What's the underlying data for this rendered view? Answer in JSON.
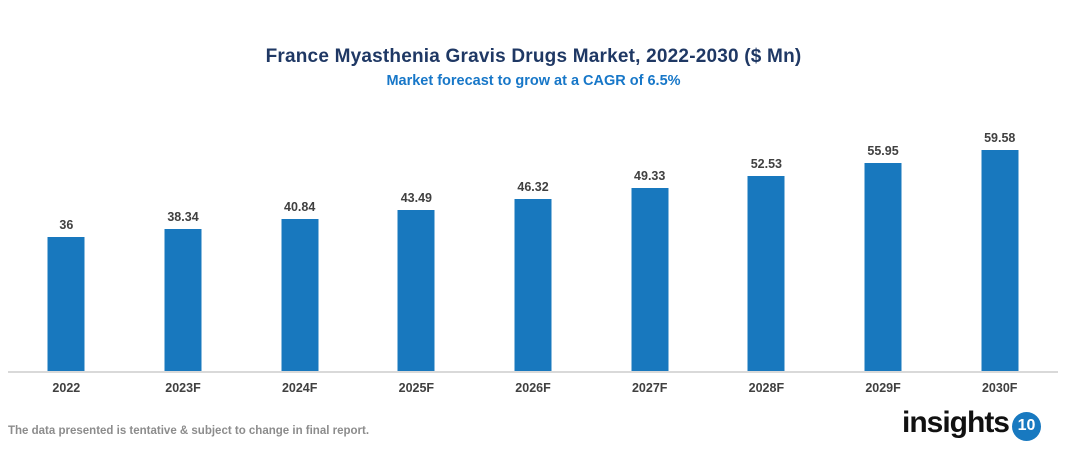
{
  "chart_data": {
    "type": "bar",
    "title": "France Myasthenia Gravis Drugs Market, 2022-2030 ($ Mn)",
    "subtitle": "Market forecast to grow at a CAGR of 6.5%",
    "categories": [
      "2022",
      "2023F",
      "2024F",
      "2025F",
      "2026F",
      "2027F",
      "2028F",
      "2029F",
      "2030F"
    ],
    "values": [
      36,
      38.34,
      40.84,
      43.49,
      46.32,
      49.33,
      52.53,
      55.95,
      59.58
    ],
    "value_labels": [
      "36",
      "38.34",
      "40.84",
      "43.49",
      "46.32",
      "49.33",
      "52.53",
      "55.95",
      "59.58"
    ],
    "xlabel": "",
    "ylabel": "",
    "ylim": [
      0,
      62
    ],
    "grid": false,
    "legend": false,
    "bar_color": "#1878BE",
    "data_label_color": "#404040",
    "axis_label_color": "#404040",
    "axis_line_color": "#D9D9D9"
  },
  "header": {
    "title_color": "#1F3864",
    "subtitle_color": "#1777C8"
  },
  "footer": {
    "note": "The data presented is tentative & subject to change in final report.",
    "logo_text": "insights",
    "logo_number": "10",
    "logo_circle_color": "#1879C0"
  }
}
